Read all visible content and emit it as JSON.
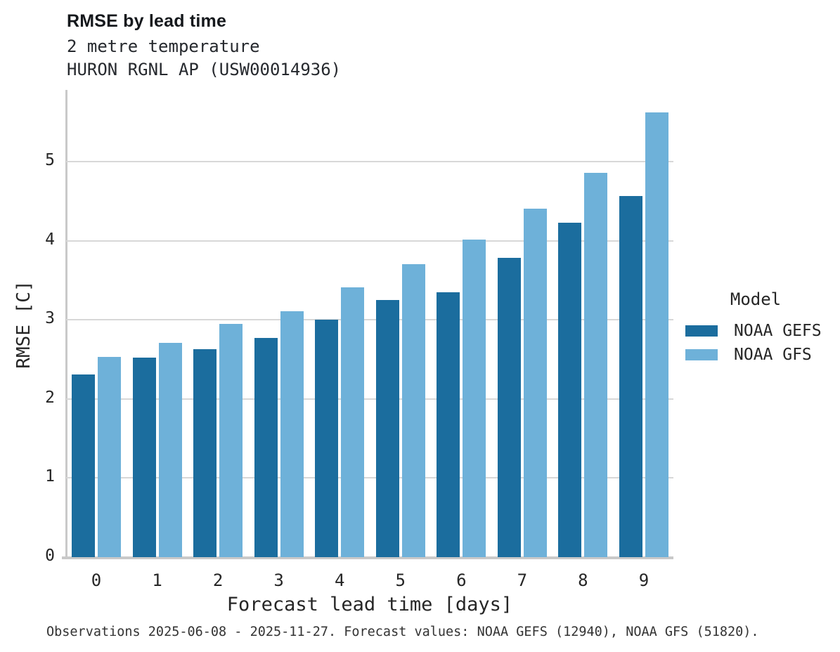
{
  "header": {
    "title": "RMSE by lead time",
    "subtitle_line1": "2 metre temperature",
    "subtitle_line2": "HURON RGNL AP (USW00014936)"
  },
  "legend": {
    "title": "Model",
    "entries": [
      "NOAA GEFS",
      "NOAA GFS"
    ]
  },
  "footer": {
    "caption": "Observations 2025-06-08 - 2025-11-27. Forecast values: NOAA GEFS (12940), NOAA GFS (51820)."
  },
  "colors": {
    "gefs_bar": "#1b6d9e",
    "gfs_bar": "#6eb1d9",
    "gridline": "#d8d8d8",
    "spine": "#c9c9c9",
    "text": "#262626"
  },
  "chart_data": {
    "type": "bar",
    "title": "RMSE by lead time",
    "subtitle": [
      "2 metre temperature",
      "HURON RGNL AP (USW00014936)"
    ],
    "categories": [
      "0",
      "1",
      "2",
      "3",
      "4",
      "5",
      "6",
      "7",
      "8",
      "9"
    ],
    "series": [
      {
        "name": "NOAA GEFS",
        "color": "#1b6d9e",
        "values": [
          2.31,
          2.52,
          2.63,
          2.77,
          3.0,
          3.25,
          3.35,
          3.79,
          4.23,
          4.57
        ]
      },
      {
        "name": "NOAA GFS",
        "color": "#6eb1d9",
        "values": [
          2.53,
          2.71,
          2.95,
          3.11,
          3.41,
          3.71,
          4.02,
          4.41,
          4.86,
          5.63
        ]
      }
    ],
    "xlabel": "Forecast lead time [days]",
    "ylabel": "RMSE [C]",
    "ylim": [
      0,
      5.91
    ],
    "yticks": [
      0,
      1,
      2,
      3,
      4,
      5
    ],
    "grid": "horizontal-only",
    "legend_title": "Model",
    "legend_position": "center-right",
    "caption": "Observations 2025-06-08 - 2025-11-27. Forecast values: NOAA GEFS (12940), NOAA GFS (51820)."
  }
}
